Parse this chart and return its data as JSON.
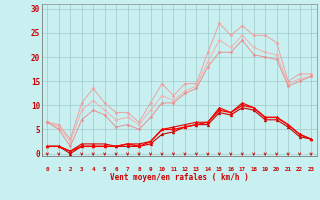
{
  "background_color": "#c8f0f0",
  "grid_color": "#a0c8c8",
  "x_labels": [
    0,
    1,
    2,
    3,
    4,
    5,
    6,
    7,
    8,
    9,
    10,
    11,
    12,
    13,
    14,
    15,
    16,
    17,
    18,
    19,
    20,
    21,
    22,
    23
  ],
  "xlabel": "Vent moyen/en rafales ( km/h )",
  "yticks": [
    0,
    5,
    10,
    15,
    20,
    25,
    30
  ],
  "ylim": [
    -0.5,
    31
  ],
  "xlim": [
    -0.5,
    23.5
  ],
  "series": [
    {
      "name": "line1_light",
      "color": "#f0a0a0",
      "linewidth": 0.7,
      "marker": "D",
      "markersize": 1.5,
      "y": [
        6.5,
        6.0,
        3.0,
        10.5,
        13.5,
        10.5,
        8.5,
        8.5,
        6.5,
        10.5,
        14.5,
        12.0,
        14.5,
        14.5,
        21.0,
        27.0,
        24.5,
        26.5,
        24.5,
        24.5,
        23.0,
        15.0,
        16.5,
        16.5
      ]
    },
    {
      "name": "line2_light",
      "color": "#f0b0b0",
      "linewidth": 0.7,
      "marker": "D",
      "markersize": 1.5,
      "y": [
        6.5,
        5.5,
        2.5,
        9.0,
        11.0,
        9.0,
        7.0,
        7.5,
        6.0,
        9.0,
        12.0,
        11.0,
        13.0,
        14.0,
        19.0,
        23.5,
        22.0,
        24.5,
        22.0,
        21.0,
        20.5,
        14.5,
        15.5,
        16.0
      ]
    },
    {
      "name": "line3_light",
      "color": "#e89090",
      "linewidth": 0.7,
      "marker": "D",
      "markersize": 1.5,
      "y": [
        6.5,
        5.0,
        1.5,
        7.0,
        9.0,
        8.0,
        5.5,
        6.0,
        5.0,
        7.5,
        10.5,
        10.5,
        12.5,
        13.5,
        18.0,
        21.0,
        21.0,
        23.5,
        20.5,
        20.0,
        19.5,
        14.0,
        15.0,
        16.0
      ]
    },
    {
      "name": "line4_dark",
      "color": "#e00000",
      "linewidth": 0.8,
      "marker": "^",
      "markersize": 2.0,
      "y": [
        1.5,
        1.5,
        0.5,
        2.0,
        2.0,
        2.0,
        1.5,
        2.0,
        2.0,
        2.5,
        5.0,
        5.5,
        6.0,
        6.5,
        6.5,
        9.5,
        8.5,
        10.5,
        9.5,
        7.5,
        7.5,
        6.0,
        4.0,
        3.0
      ]
    },
    {
      "name": "line5_dark",
      "color": "#c80000",
      "linewidth": 0.8,
      "marker": "^",
      "markersize": 2.0,
      "y": [
        1.5,
        1.5,
        0.0,
        1.5,
        1.5,
        1.5,
        1.5,
        1.5,
        1.5,
        2.0,
        4.0,
        4.5,
        5.5,
        6.0,
        6.0,
        8.5,
        8.0,
        9.5,
        9.0,
        7.0,
        7.0,
        5.5,
        3.5,
        3.0
      ]
    },
    {
      "name": "line6_dark",
      "color": "#ff0000",
      "linewidth": 1.0,
      "marker": "^",
      "markersize": 2.0,
      "y": [
        1.5,
        1.5,
        0.5,
        1.5,
        1.5,
        1.5,
        1.5,
        2.0,
        1.5,
        2.5,
        5.0,
        5.0,
        5.5,
        6.0,
        6.5,
        9.0,
        8.5,
        10.0,
        9.5,
        7.5,
        7.5,
        6.0,
        4.0,
        3.0
      ]
    }
  ],
  "arrow_color": "#cc0000",
  "tick_color": "#cc0000",
  "label_color": "#cc0000"
}
